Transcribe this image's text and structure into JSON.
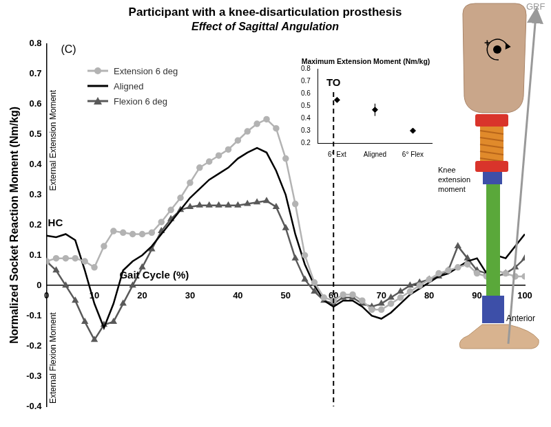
{
  "chart_data": [
    {
      "type": "line",
      "title": "Participant with a knee-disarticulation prosthesis",
      "subtitle": "Effect of Sagittal Angulation",
      "x_label": "Gait Cycle (%)",
      "y_label": "Normalized Socket Reaction Moment (Nm/kg)",
      "annotations": [
        "(C)",
        "External Extension Moment",
        "External Flexion Moment",
        "HC",
        "Knee extension moment",
        "GRF",
        "Anterior",
        "+"
      ],
      "vertical_lines": [
        {
          "x": 60,
          "label": "TO"
        }
      ],
      "x": [
        0,
        2,
        4,
        6,
        8,
        10,
        12,
        14,
        16,
        18,
        20,
        22,
        24,
        26,
        28,
        30,
        32,
        34,
        36,
        38,
        40,
        42,
        44,
        46,
        48,
        50,
        52,
        54,
        56,
        58,
        60,
        62,
        64,
        66,
        68,
        70,
        72,
        74,
        76,
        78,
        80,
        82,
        84,
        86,
        88,
        90,
        92,
        94,
        96,
        98,
        100
      ],
      "series": [
        {
          "name": "Extension 6 deg",
          "color": "#b3b3b3",
          "marker": "circle",
          "line_style": "solid",
          "values": [
            0.08,
            0.09,
            0.09,
            0.09,
            0.08,
            0.06,
            0.13,
            0.18,
            0.175,
            0.17,
            0.17,
            0.175,
            0.21,
            0.25,
            0.29,
            0.34,
            0.39,
            0.41,
            0.43,
            0.45,
            0.48,
            0.51,
            0.535,
            0.55,
            0.52,
            0.42,
            0.27,
            0.1,
            0.01,
            -0.04,
            -0.05,
            -0.03,
            -0.03,
            -0.05,
            -0.08,
            -0.08,
            -0.06,
            -0.04,
            -0.02,
            0.0,
            0.02,
            0.04,
            0.05,
            0.06,
            0.07,
            0.04,
            0.03,
            0.05,
            0.04,
            0.03,
            0.03
          ]
        },
        {
          "name": "Aligned",
          "color": "#000000",
          "marker": "none",
          "line_style": "solid",
          "values": [
            0.165,
            0.16,
            0.17,
            0.15,
            0.05,
            -0.06,
            -0.14,
            -0.06,
            0.05,
            0.08,
            0.1,
            0.13,
            0.17,
            0.21,
            0.25,
            0.29,
            0.32,
            0.35,
            0.37,
            0.39,
            0.42,
            0.44,
            0.455,
            0.44,
            0.38,
            0.3,
            0.17,
            0.07,
            0.0,
            -0.05,
            -0.07,
            -0.05,
            -0.05,
            -0.07,
            -0.1,
            -0.11,
            -0.09,
            -0.06,
            -0.03,
            -0.01,
            0.01,
            0.03,
            0.04,
            0.06,
            0.08,
            0.09,
            0.04,
            0.1,
            0.09,
            0.13,
            0.17
          ]
        },
        {
          "name": "Flexion 6 deg",
          "color": "#595959",
          "marker": "triangle",
          "line_style": "solid",
          "values": [
            0.08,
            0.05,
            0.0,
            -0.05,
            -0.12,
            -0.18,
            -0.13,
            -0.12,
            -0.06,
            0.0,
            0.06,
            0.12,
            0.18,
            0.22,
            0.25,
            0.26,
            0.265,
            0.265,
            0.265,
            0.265,
            0.265,
            0.27,
            0.275,
            0.28,
            0.26,
            0.19,
            0.09,
            0.02,
            -0.02,
            -0.05,
            -0.06,
            -0.04,
            -0.04,
            -0.06,
            -0.07,
            -0.06,
            -0.04,
            -0.02,
            0.0,
            0.01,
            0.02,
            0.03,
            0.05,
            0.13,
            0.09,
            0.05,
            0.04,
            0.03,
            0.04,
            0.06,
            0.09
          ]
        }
      ],
      "xlim": [
        0,
        100
      ],
      "xticks": [
        0,
        10,
        20,
        30,
        40,
        50,
        60,
        70,
        80,
        90,
        100
      ],
      "ylim": [
        -0.4,
        0.8
      ],
      "yticks": [
        -0.4,
        -0.3,
        -0.2,
        -0.1,
        0,
        0.1,
        0.2,
        0.3,
        0.4,
        0.5,
        0.6,
        0.7,
        0.8
      ],
      "grid": false,
      "legend": "upper left"
    },
    {
      "type": "scatter",
      "title": "Maximum Extension Moment (Nm/kg)",
      "categories": [
        "6° Ext",
        "Aligned",
        "6° Flex"
      ],
      "values": [
        0.55,
        0.47,
        0.3
      ],
      "errors": [
        0.01,
        0.05,
        0.005
      ],
      "color": "#000000",
      "marker": "diamond",
      "ylim": [
        0.2,
        0.8
      ],
      "yticks": [
        0.2,
        0.3,
        0.4,
        0.5,
        0.6,
        0.7,
        0.8
      ],
      "grid": false
    }
  ]
}
